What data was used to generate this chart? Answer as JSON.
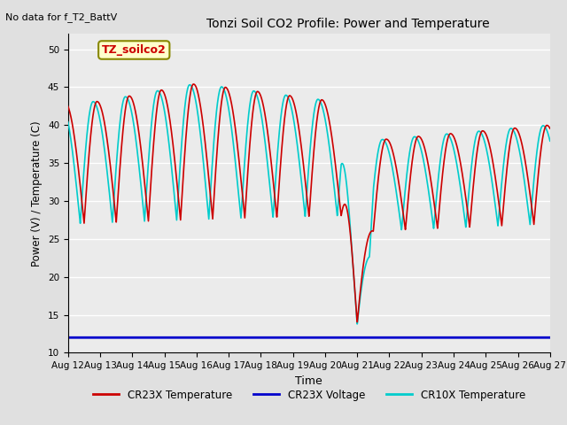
{
  "title": "Tonzi Soil CO2 Profile: Power and Temperature",
  "subtitle": "No data for f_T2_BattV",
  "ylabel": "Power (V) / Temperature (C)",
  "xlabel": "Time",
  "ylim": [
    10,
    52
  ],
  "yticks": [
    10,
    15,
    20,
    25,
    30,
    35,
    40,
    45,
    50
  ],
  "bg_color": "#e0e0e0",
  "plot_bg": "#ebebeb",
  "legend_label1": "CR23X Temperature",
  "legend_label2": "CR23X Voltage",
  "legend_label3": "CR10X Temperature",
  "color_cr23x": "#cc0000",
  "color_voltage": "#0000cc",
  "color_cr10x": "#00cccc",
  "legend_box_color": "#ffffcc",
  "annotation": "TZ_soilco2",
  "x_tick_labels": [
    "Aug 12",
    "Aug 13",
    "Aug 14",
    "Aug 15",
    "Aug 16",
    "Aug 17",
    "Aug 18",
    "Aug 19",
    "Aug 20",
    "Aug 21",
    "Aug 22",
    "Aug 23",
    "Aug 24",
    "Aug 25",
    "Aug 26",
    "Aug 27"
  ],
  "voltage_flat": 12.0
}
